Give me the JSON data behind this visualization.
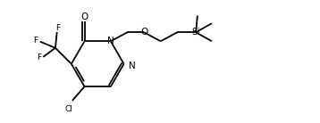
{
  "bg_color": "#ffffff",
  "line_color": "#000000",
  "line_width": 1.3,
  "font_size": 7.0,
  "figsize": [
    3.58,
    1.38
  ],
  "dpi": 100,
  "xlim": [
    0.0,
    10.0
  ],
  "ylim": [
    0.0,
    3.85
  ]
}
